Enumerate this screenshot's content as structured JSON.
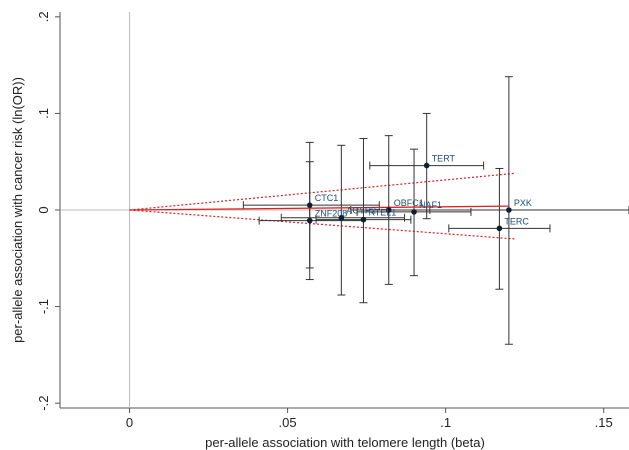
{
  "chart_data": {
    "type": "scatter",
    "xlabel": "per-allele association with telomere length (beta)",
    "ylabel": "per-allele association with cancer risk (ln(OR))",
    "xlim": [
      -0.022,
      0.158
    ],
    "ylim": [
      -0.205,
      0.205
    ],
    "xticks": [
      {
        "value": 0,
        "label": "0"
      },
      {
        "value": 0.05,
        "label": ".05"
      },
      {
        "value": 0.1,
        "label": ".1"
      },
      {
        "value": 0.15,
        "label": ".15"
      }
    ],
    "yticks": [
      {
        "value": -0.2,
        "label": "-.2"
      },
      {
        "value": -0.1,
        "label": "-.1"
      },
      {
        "value": 0,
        "label": "0"
      },
      {
        "value": 0.1,
        "label": ".1"
      },
      {
        "value": 0.2,
        "label": ".2"
      }
    ],
    "grid": false,
    "points": [
      {
        "name": "TERT",
        "x": 0.094,
        "y": 0.046,
        "x_lo": 0.076,
        "x_hi": 0.112,
        "y_lo": -0.009,
        "y_hi": 0.1
      },
      {
        "name": "CTC1",
        "x": 0.057,
        "y": 0.005,
        "x_lo": 0.036,
        "x_hi": 0.079,
        "y_lo": -0.06,
        "y_hi": 0.07
      },
      {
        "name": "OBFC1",
        "x": 0.082,
        "y": 0.0,
        "x_lo": 0.07,
        "x_hi": 0.095,
        "y_lo": -0.077,
        "y_hi": 0.077
      },
      {
        "name": "NAF1",
        "x": 0.09,
        "y": -0.002,
        "x_lo": 0.072,
        "x_hi": 0.108,
        "y_lo": -0.068,
        "y_hi": 0.063
      },
      {
        "name": "PXK",
        "x": 0.12,
        "y": 0.0,
        "x_lo": 0.082,
        "x_hi": 0.158,
        "y_lo": -0.139,
        "y_hi": 0.138
      },
      {
        "name": "TERC",
        "x": 0.117,
        "y": -0.019,
        "x_lo": 0.101,
        "x_hi": 0.133,
        "y_lo": -0.082,
        "y_hi": 0.043
      },
      {
        "name": "ZNF208",
        "x": 0.057,
        "y": -0.011,
        "x_lo": 0.041,
        "x_hi": 0.074,
        "y_lo": -0.072,
        "y_hi": 0.05
      },
      {
        "name": "ACYP2",
        "x": 0.067,
        "y": -0.008,
        "x_lo": 0.048,
        "x_hi": 0.087,
        "y_lo": -0.088,
        "y_hi": 0.067
      },
      {
        "name": "RTEL1",
        "x": 0.074,
        "y": -0.01,
        "x_lo": 0.059,
        "x_hi": 0.089,
        "y_lo": -0.096,
        "y_hi": 0.074
      }
    ],
    "label_text": {
      "TERT": "TERT",
      "CTC1": "CTC1",
      "OBFC1": "OBFC1",
      "NAF1": "NAF1",
      "PXK": "PXK",
      "TERC": "TERC",
      "ZNF208": "ZNF208",
      "ACYP2": "ACYP2",
      "RTEL1": "RTEL1"
    },
    "fit_line": {
      "x0": 0,
      "y0": 0,
      "x1": 0.12,
      "y1": 0.004
    },
    "ci_lines": {
      "upper": {
        "x0": 0,
        "y0": 0,
        "x1": 0.122,
        "y1": 0.038
      },
      "lower": {
        "x0": 0,
        "y0": 0,
        "x1": 0.122,
        "y1": -0.03
      }
    },
    "colors": {
      "marker": "#0d1f33",
      "errorbar": "#333333",
      "fit": "#e02020",
      "ci": "#e02020",
      "label": "#1f4e79",
      "refline": "#bbbbbb",
      "axis": "#555555"
    }
  }
}
